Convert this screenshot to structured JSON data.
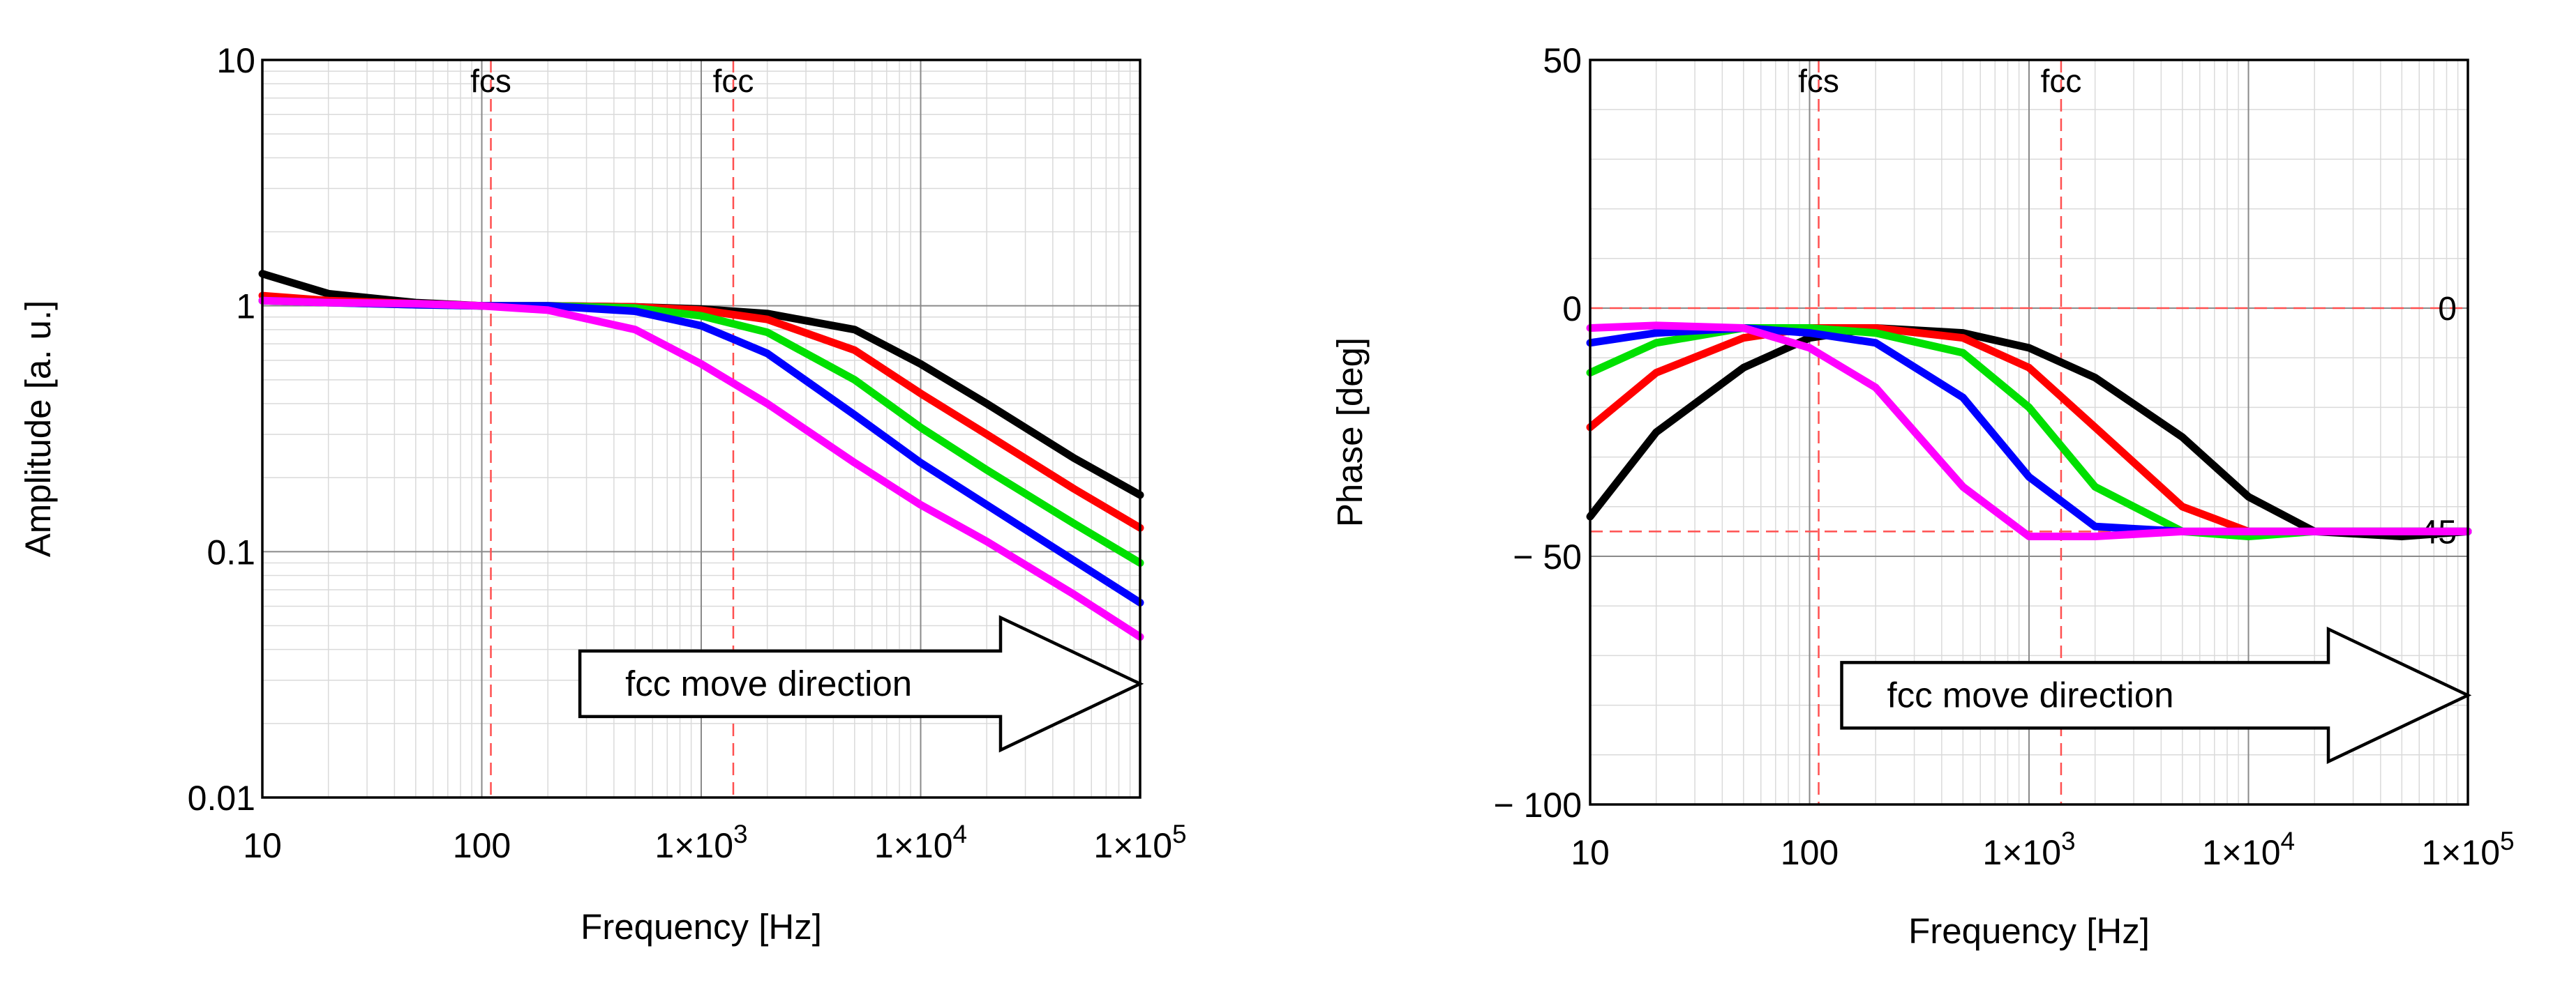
{
  "chart_data": [
    {
      "type": "line",
      "xscale": "log",
      "yscale": "log",
      "xlim": [
        10,
        100000
      ],
      "ylim": [
        0.01,
        10
      ],
      "xlabel": "Frequency [Hz]",
      "ylabel": "Amplitude [a. u.]",
      "x_ticks": [
        {
          "value": 10,
          "mantissa": "10",
          "exp": ""
        },
        {
          "value": 100,
          "mantissa": "100",
          "exp": ""
        },
        {
          "value": 1000,
          "mantissa": "1×10",
          "exp": "3"
        },
        {
          "value": 10000,
          "mantissa": "1×10",
          "exp": "4"
        },
        {
          "value": 100000,
          "mantissa": "1×10",
          "exp": "5"
        }
      ],
      "y_ticks": [
        {
          "value": 10,
          "label": "10"
        },
        {
          "value": 1,
          "label": "1"
        },
        {
          "value": 0.1,
          "label": "0.1"
        },
        {
          "value": 0.01,
          "label": "0.01"
        }
      ],
      "grid": true,
      "markers": [
        {
          "label": "fcs",
          "x": 110
        },
        {
          "label": "fcc",
          "x": 1400
        }
      ],
      "ref_lines": [],
      "arrow": {
        "label": "fcc move direction",
        "x_from": 280,
        "x_to": 100000,
        "y": 0.029
      },
      "x": [
        10,
        20,
        50,
        100,
        200,
        500,
        1000,
        2000,
        5000,
        10000,
        20000,
        50000,
        100000
      ],
      "series": [
        {
          "name": "black",
          "color": "#000000",
          "values": [
            1.35,
            1.12,
            1.03,
            1.0,
            1.0,
            0.99,
            0.97,
            0.93,
            0.8,
            0.58,
            0.4,
            0.24,
            0.17
          ]
        },
        {
          "name": "red",
          "color": "#ff0000",
          "values": [
            1.1,
            1.05,
            1.02,
            1.0,
            1.0,
            0.99,
            0.96,
            0.88,
            0.66,
            0.44,
            0.3,
            0.18,
            0.125
          ]
        },
        {
          "name": "green",
          "color": "#00e000",
          "values": [
            1.05,
            1.03,
            1.01,
            1.0,
            1.0,
            0.98,
            0.91,
            0.78,
            0.5,
            0.32,
            0.215,
            0.13,
            0.09
          ]
        },
        {
          "name": "blue",
          "color": "#0000ff",
          "values": [
            1.05,
            1.03,
            1.01,
            1.0,
            1.0,
            0.95,
            0.83,
            0.64,
            0.36,
            0.23,
            0.155,
            0.092,
            0.062
          ]
        },
        {
          "name": "magenta",
          "color": "#ff00ff",
          "values": [
            1.05,
            1.03,
            1.02,
            1.0,
            0.96,
            0.8,
            0.58,
            0.4,
            0.23,
            0.155,
            0.11,
            0.067,
            0.045
          ]
        }
      ]
    },
    {
      "type": "line",
      "xscale": "log",
      "yscale": "linear",
      "xlim": [
        10,
        100000
      ],
      "ylim": [
        -100,
        50
      ],
      "xlabel": "Frequency [Hz]",
      "ylabel": "Phase [deg]",
      "x_ticks": [
        {
          "value": 10,
          "mantissa": "10",
          "exp": ""
        },
        {
          "value": 100,
          "mantissa": "100",
          "exp": ""
        },
        {
          "value": 1000,
          "mantissa": "1×10",
          "exp": "3"
        },
        {
          "value": 10000,
          "mantissa": "1×10",
          "exp": "4"
        },
        {
          "value": 100000,
          "mantissa": "1×10",
          "exp": "5"
        }
      ],
      "y_ticks": [
        {
          "value": 50,
          "label": "50"
        },
        {
          "value": 0,
          "label": "0"
        },
        {
          "value": -50,
          "label": "− 50"
        },
        {
          "value": -100,
          "label": "− 100"
        }
      ],
      "grid": true,
      "markers": [
        {
          "label": "fcs",
          "x": 110
        },
        {
          "label": "fcc",
          "x": 1400
        }
      ],
      "ref_lines": [
        {
          "y": 0,
          "label": "0"
        },
        {
          "y": -45,
          "label": "-45"
        }
      ],
      "arrow": {
        "label": "fcc move direction",
        "x_from": 140,
        "x_to": 100000,
        "y": -78
      },
      "x": [
        10,
        20,
        50,
        100,
        200,
        500,
        1000,
        2000,
        5000,
        10000,
        20000,
        50000,
        100000
      ],
      "series": [
        {
          "name": "black",
          "color": "#000000",
          "values": [
            -42,
            -25,
            -12,
            -6,
            -4,
            -5,
            -8,
            -14,
            -26,
            -38,
            -45,
            -46,
            -45
          ]
        },
        {
          "name": "red",
          "color": "#ff0000",
          "values": [
            -24,
            -13,
            -6,
            -4,
            -4,
            -6,
            -12,
            -24,
            -40,
            -45,
            -45,
            -45,
            -45
          ]
        },
        {
          "name": "green",
          "color": "#00e000",
          "values": [
            -13,
            -7,
            -4,
            -4,
            -5,
            -9,
            -20,
            -36,
            -45,
            -46,
            -45,
            -45,
            -45
          ]
        },
        {
          "name": "blue",
          "color": "#0000ff",
          "values": [
            -7,
            -5,
            -4,
            -5,
            -7,
            -18,
            -34,
            -44,
            -45,
            -45,
            -45,
            -45,
            -45
          ]
        },
        {
          "name": "magenta",
          "color": "#ff00ff",
          "values": [
            -4,
            -3.5,
            -4,
            -8,
            -16,
            -36,
            -46,
            -46,
            -45,
            -45,
            -45,
            -45,
            -45
          ]
        }
      ]
    }
  ]
}
